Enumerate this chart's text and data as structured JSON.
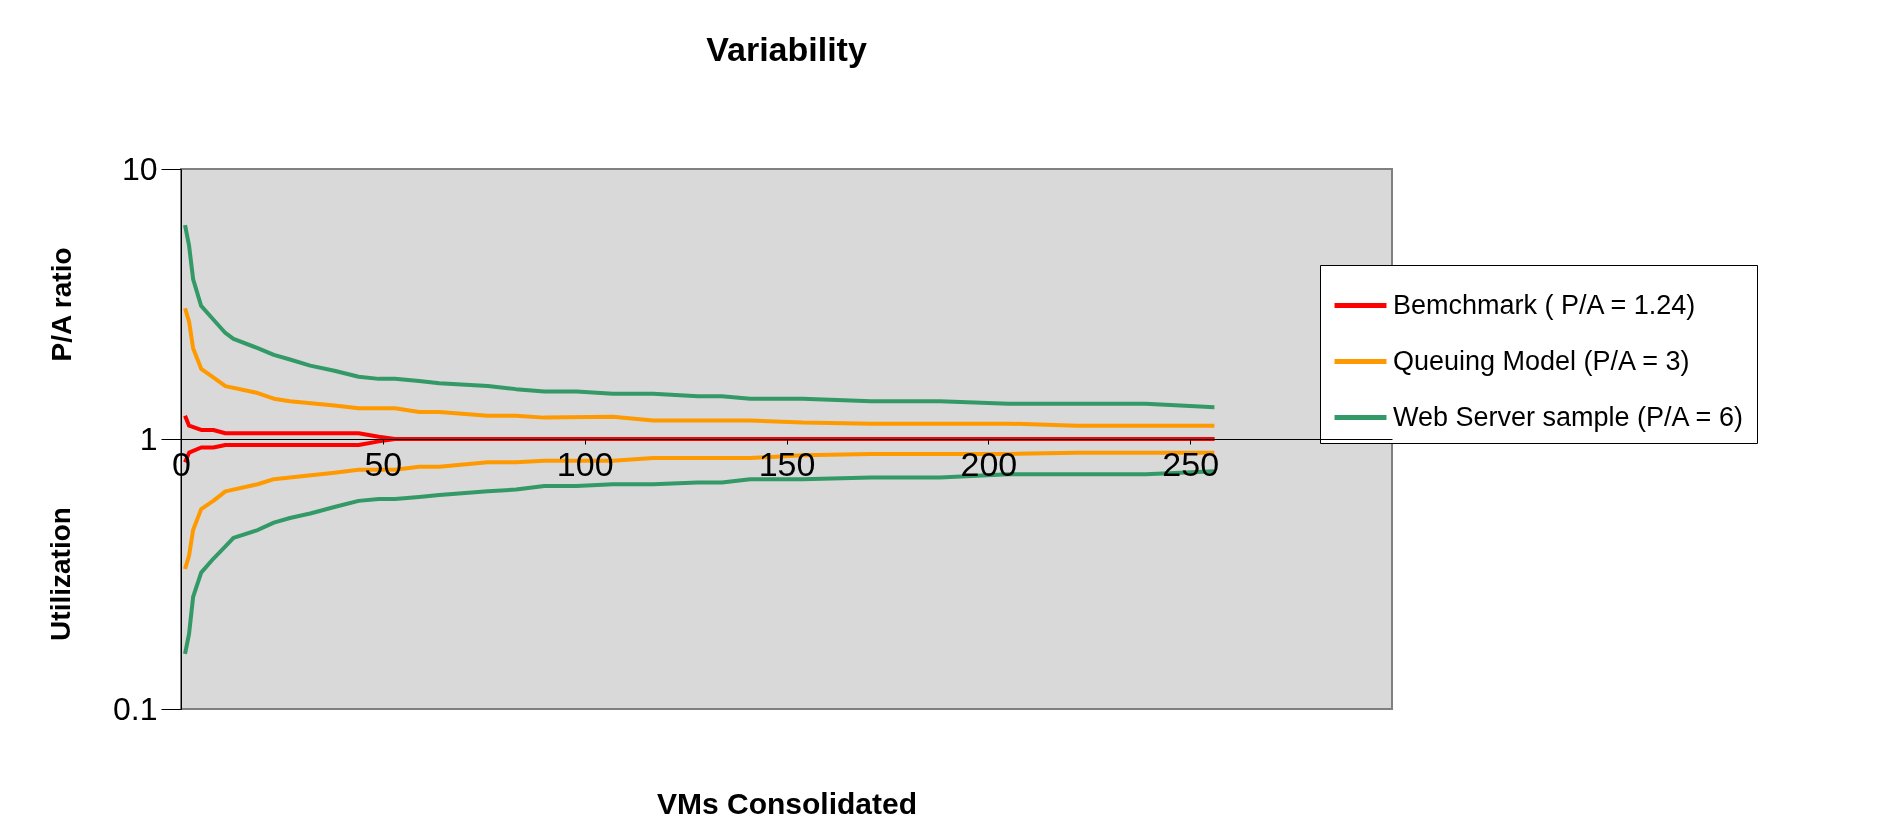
{
  "chart_data": {
    "type": "line",
    "title": "Variability",
    "xlabel": "VMs Consolidated",
    "ylabel": "P/A ratio",
    "annotations": [
      "Utilization"
    ],
    "log": "y",
    "grid": false,
    "legend": "right",
    "marker": "none",
    "line_style": "solid",
    "xlim": [
      0,
      300
    ],
    "xticks": [
      0,
      50,
      100,
      150,
      200,
      250
    ],
    "ylim": [
      0.1,
      10
    ],
    "yticks": [
      0.1,
      1,
      10
    ],
    "series": [
      {
        "name": "Bemchmark ( P/A = 1.24)",
        "color": "#ff0000",
        "x": [
          1,
          2,
          5,
          8,
          11,
          13,
          38,
          44,
          49,
          53,
          256
        ],
        "values": [
          1.22,
          1.12,
          1.08,
          1.08,
          1.05,
          1.05,
          1.05,
          1.05,
          1.02,
          1.0,
          1.0
        ]
      },
      {
        "name": "Queuing Model (P/A = 3)",
        "color": "#ff9900",
        "x": [
          1,
          2,
          3,
          5,
          8,
          11,
          19,
          23,
          27,
          38,
          44,
          53,
          59,
          64,
          76,
          83,
          90,
          107,
          117,
          141,
          154,
          171,
          188,
          205,
          222,
          239,
          256
        ],
        "values": [
          3.05,
          2.72,
          2.17,
          1.82,
          1.69,
          1.57,
          1.48,
          1.41,
          1.38,
          1.33,
          1.3,
          1.3,
          1.26,
          1.26,
          1.22,
          1.22,
          1.2,
          1.21,
          1.17,
          1.17,
          1.15,
          1.14,
          1.14,
          1.14,
          1.12,
          1.12,
          1.12
        ]
      },
      {
        "name": "Web Server sample (P/A = 6)",
        "color": "#339966",
        "x": [
          1,
          2,
          3,
          5,
          8,
          11,
          13,
          19,
          23,
          27,
          32,
          38,
          44,
          49,
          53,
          59,
          64,
          76,
          83,
          90,
          98,
          107,
          117,
          128,
          134,
          141,
          154,
          171,
          188,
          205,
          222,
          239,
          256
        ],
        "values": [
          6.2,
          5.2,
          3.91,
          3.11,
          2.77,
          2.47,
          2.35,
          2.17,
          2.05,
          1.97,
          1.87,
          1.79,
          1.7,
          1.67,
          1.67,
          1.64,
          1.61,
          1.57,
          1.53,
          1.5,
          1.5,
          1.47,
          1.47,
          1.44,
          1.44,
          1.41,
          1.41,
          1.38,
          1.38,
          1.35,
          1.35,
          1.35,
          1.31
        ]
      },
      {
        "color": "#ff0000",
        "x": [
          1,
          2,
          5,
          8,
          11,
          13,
          38,
          44,
          49,
          53,
          256
        ],
        "values": [
          0.82,
          0.89,
          0.93,
          0.93,
          0.95,
          0.95,
          0.95,
          0.95,
          0.98,
          1.0,
          1.0
        ]
      },
      {
        "color": "#ff9900",
        "x": [
          1,
          2,
          3,
          5,
          8,
          11,
          19,
          23,
          27,
          38,
          44,
          53,
          59,
          64,
          76,
          83,
          90,
          107,
          117,
          141,
          154,
          171,
          188,
          205,
          222,
          239,
          256
        ],
        "values": [
          0.33,
          0.37,
          0.46,
          0.55,
          0.59,
          0.64,
          0.68,
          0.71,
          0.72,
          0.75,
          0.77,
          0.77,
          0.79,
          0.79,
          0.82,
          0.82,
          0.83,
          0.83,
          0.85,
          0.85,
          0.87,
          0.88,
          0.88,
          0.88,
          0.89,
          0.89,
          0.89
        ]
      },
      {
        "color": "#339966",
        "x": [
          1,
          2,
          3,
          5,
          8,
          11,
          13,
          19,
          23,
          27,
          32,
          38,
          44,
          49,
          53,
          59,
          64,
          76,
          83,
          90,
          98,
          107,
          117,
          128,
          134,
          141,
          154,
          171,
          188,
          205,
          222,
          239,
          256
        ],
        "values": [
          0.16,
          0.19,
          0.26,
          0.32,
          0.36,
          0.4,
          0.43,
          0.46,
          0.49,
          0.51,
          0.53,
          0.56,
          0.59,
          0.6,
          0.6,
          0.61,
          0.62,
          0.64,
          0.65,
          0.67,
          0.67,
          0.68,
          0.68,
          0.69,
          0.69,
          0.71,
          0.71,
          0.72,
          0.72,
          0.74,
          0.74,
          0.74,
          0.76
        ]
      }
    ]
  }
}
